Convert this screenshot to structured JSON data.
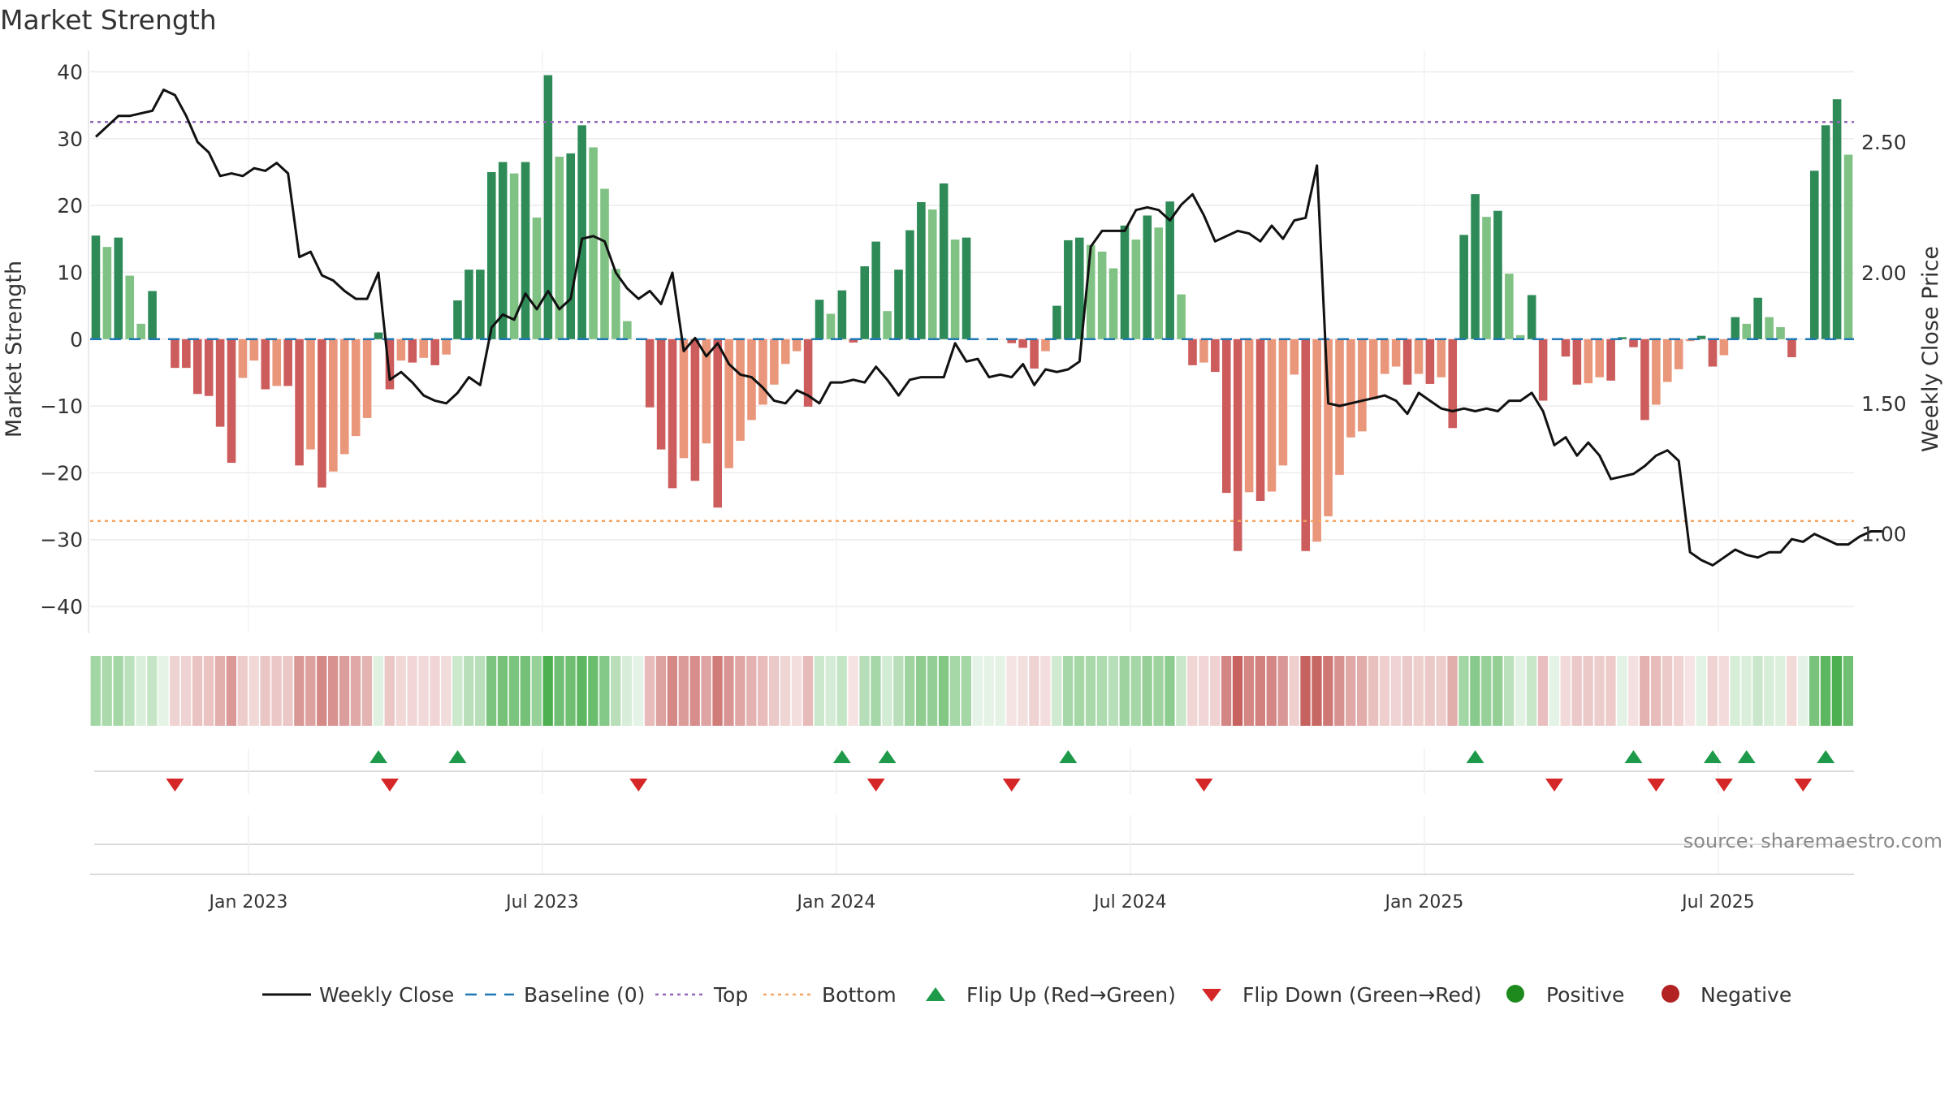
{
  "chart_data": {
    "type": "bar",
    "title": "Market Strength",
    "ylabel": "Market Strength",
    "y2label": "Weekly Close Price",
    "source": "source: sharemaestro.com",
    "ylim": [
      -44,
      42
    ],
    "y2lim": [
      0.62,
      2.82
    ],
    "yticks": [
      "40",
      "30",
      "20",
      "10",
      "0",
      "−10",
      "−20",
      "−30",
      "−40"
    ],
    "y2ticks": [
      "2.50",
      "2.00",
      "1.50",
      "1.00"
    ],
    "xticks": [
      {
        "label": "Jan 2023",
        "week": 14
      },
      {
        "label": "Jul 2023",
        "week": 40
      },
      {
        "label": "Jan 2024",
        "week": 66
      },
      {
        "label": "Jul 2024",
        "week": 92
      },
      {
        "label": "Jan 2025",
        "week": 118
      },
      {
        "label": "Jul 2025",
        "week": 144
      }
    ],
    "top_line": 32.5,
    "bottom_line": -27.2,
    "strength": [
      15.5,
      13.8,
      15.2,
      9.5,
      2.3,
      7.2,
      0,
      -4.3,
      -4.3,
      -8.2,
      -8.5,
      -13.1,
      -18.5,
      -5.8,
      -3.2,
      -7.5,
      -7,
      -7,
      -18.9,
      -16.5,
      -22.2,
      -19.8,
      -17.2,
      -14.5,
      -11.8,
      1,
      -7.5,
      -3.2,
      -3.5,
      -2.8,
      -3.9,
      -2.3,
      5.8,
      10.4,
      10.4,
      25,
      26.5,
      24.8,
      26.5,
      18.2,
      39.5,
      27.3,
      27.8,
      32,
      28.7,
      22.5,
      10.5,
      2.7,
      0,
      -10.2,
      -16.5,
      -22.3,
      -17.8,
      -21.2,
      -15.6,
      -25.2,
      -19.3,
      -15.2,
      -12.1,
      -9.8,
      -6.8,
      -3.7,
      -1.8,
      -10.1,
      5.9,
      3.8,
      7.3,
      -0.5,
      10.9,
      14.6,
      4.2,
      10.4,
      16.3,
      20.5,
      19.4,
      23.3,
      14.9,
      15.2,
      0,
      0,
      0,
      -0.6,
      -1.3,
      -4.4,
      -1.8,
      5,
      14.8,
      15.2,
      14.1,
      13.1,
      10.6,
      17,
      14.9,
      18.5,
      16.7,
      20.6,
      6.7,
      -3.9,
      -3.5,
      -4.9,
      -23,
      -31.7,
      -22.9,
      -24.2,
      -22.8,
      -18.9,
      -5.3,
      -31.7,
      -30.3,
      -26.5,
      -20.3,
      -14.7,
      -13.8,
      -9,
      -5.2,
      -4.1,
      -6.8,
      -5.2,
      -6.7,
      -5.7,
      -13.3,
      15.6,
      21.7,
      18.3,
      19.2,
      9.8,
      0.6,
      6.6,
      -9.2,
      0,
      -2.6,
      -6.8,
      -6.6,
      -5.7,
      -6.2,
      0.3,
      -1.2,
      -12.1,
      -9.8,
      -6.4,
      -4.5,
      -0.3,
      0.5,
      -4.1,
      -2.4,
      3.3,
      2.3,
      6.2,
      3.3,
      1.8,
      -2.7,
      0,
      25.2,
      32,
      35.9,
      27.6
    ],
    "close": [
      2.52,
      2.56,
      2.6,
      2.6,
      2.61,
      2.62,
      2.7,
      2.68,
      2.6,
      2.5,
      2.46,
      2.37,
      2.38,
      2.37,
      2.4,
      2.39,
      2.42,
      2.38,
      2.06,
      2.08,
      1.99,
      1.97,
      1.93,
      1.9,
      1.9,
      2.0,
      1.59,
      1.62,
      1.58,
      1.53,
      1.51,
      1.5,
      1.54,
      1.6,
      1.57,
      1.79,
      1.84,
      1.82,
      1.92,
      1.86,
      1.93,
      1.86,
      1.9,
      2.13,
      2.14,
      2.12,
      2.0,
      1.94,
      1.9,
      1.93,
      1.88,
      2.0,
      1.7,
      1.75,
      1.68,
      1.73,
      1.65,
      1.61,
      1.6,
      1.56,
      1.51,
      1.5,
      1.55,
      1.53,
      1.5,
      1.58,
      1.58,
      1.59,
      1.58,
      1.64,
      1.59,
      1.53,
      1.59,
      1.6,
      1.6,
      1.6,
      1.73,
      1.66,
      1.67,
      1.6,
      1.61,
      1.6,
      1.65,
      1.57,
      1.63,
      1.62,
      1.63,
      1.66,
      2.1,
      2.16,
      2.16,
      2.16,
      2.24,
      2.25,
      2.24,
      2.2,
      2.26,
      2.3,
      2.22,
      2.12,
      2.14,
      2.16,
      2.15,
      2.12,
      2.18,
      2.13,
      2.2,
      2.21,
      2.41,
      1.5,
      1.49,
      1.5,
      1.51,
      1.52,
      1.53,
      1.51,
      1.46,
      1.54,
      1.51,
      1.48,
      1.47,
      1.48,
      1.47,
      1.48,
      1.47,
      1.51,
      1.51,
      1.54,
      1.47,
      1.34,
      1.37,
      1.3,
      1.35,
      1.3,
      1.21,
      1.22,
      1.23,
      1.26,
      1.3,
      1.32,
      1.28,
      0.93,
      0.9,
      0.88,
      0.91,
      0.94,
      0.92,
      0.91,
      0.93,
      0.93,
      0.98,
      0.97,
      1.0,
      0.98,
      0.96,
      0.96,
      0.99,
      1.01,
      1.01
    ],
    "flip_up_weeks": [
      25,
      32,
      66,
      70,
      86,
      122,
      136,
      143,
      146,
      153
    ],
    "flip_down_weeks": [
      7,
      26,
      48,
      69,
      81,
      98,
      129,
      138,
      144,
      151
    ],
    "colors": {
      "dark_green": "#2e8b57",
      "light_green": "#80c283",
      "dark_red": "#cd5c5c",
      "light_red": "#e9967a",
      "close_line": "#111111",
      "top_line": "#9467bd",
      "bottom_line": "#f4a460",
      "baseline": "#1f77b4",
      "flip_up": "#1e9a4a",
      "flip_down": "#d62728",
      "positive": "#1e8a1e",
      "negative": "#b22222"
    },
    "legend_position": "bottom",
    "legend": [
      {
        "label": "Weekly Close",
        "icon": "solid-line"
      },
      {
        "label": "Baseline (0)",
        "icon": "dashed-line"
      },
      {
        "label": "Top",
        "icon": "dotted-line"
      },
      {
        "label": "Bottom",
        "icon": "dotted-line"
      },
      {
        "label": "Flip Up (Red→Green)",
        "icon": "triangle-up"
      },
      {
        "label": "Flip Down (Green→Red)",
        "icon": "triangle-down"
      },
      {
        "label": "Positive",
        "icon": "circle"
      },
      {
        "label": "Negative",
        "icon": "circle"
      }
    ]
  }
}
